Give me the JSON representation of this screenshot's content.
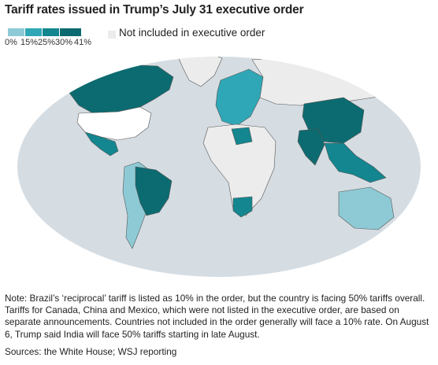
{
  "title": "Tariff rates issued in Trump’s July 31 executive order",
  "legend": {
    "stops": [
      {
        "label": "0%",
        "value": 0
      },
      {
        "label": "15%",
        "value": 15
      },
      {
        "label": "25%",
        "value": 25
      },
      {
        "label": "30%",
        "value": 30
      },
      {
        "label": "41%",
        "value": 41
      }
    ],
    "colors": [
      "#8ecad6",
      "#2fa7b6",
      "#13868f",
      "#0c6b70"
    ],
    "excluded_label": "Not included in executive order",
    "excluded_color": "#ececec"
  },
  "map": {
    "ocean_color": "#d5dde3",
    "border_color": "#555555",
    "regions": [
      {
        "name": "Canada",
        "color": "#0c6b70"
      },
      {
        "name": "United States",
        "color": "#ffffff"
      },
      {
        "name": "Mexico",
        "color": "#13868f"
      },
      {
        "name": "Brazil",
        "color": "#0c6b70"
      },
      {
        "name": "South America",
        "color": "#8ecad6"
      },
      {
        "name": "Greenland",
        "color": "#ececec"
      },
      {
        "name": "Europe",
        "color": "#2fa7b6"
      },
      {
        "name": "Russia",
        "color": "#ececec"
      },
      {
        "name": "China",
        "color": "#0c6b70"
      },
      {
        "name": "India",
        "color": "#0c6b70"
      },
      {
        "name": "Southeast Asia",
        "color": "#13868f"
      },
      {
        "name": "Africa",
        "color": "#ececec"
      },
      {
        "name": "Libya",
        "color": "#13868f"
      },
      {
        "name": "South Africa",
        "color": "#13868f"
      },
      {
        "name": "Australia",
        "color": "#8ecad6"
      }
    ]
  },
  "note": "Note: Brazil’s ‘reciprocal’ tariff is listed as 10% in the order, but the country is facing 50% tariffs overall. Tariffs for Canada, China and Mexico, which were not listed in the executive order, are based on separate announcements. Countries not included in the order generally will face a 10% rate. On August 6, Trump said India will face 50% tariffs starting in late August.",
  "source": "Sources: the White House; WSJ reporting"
}
